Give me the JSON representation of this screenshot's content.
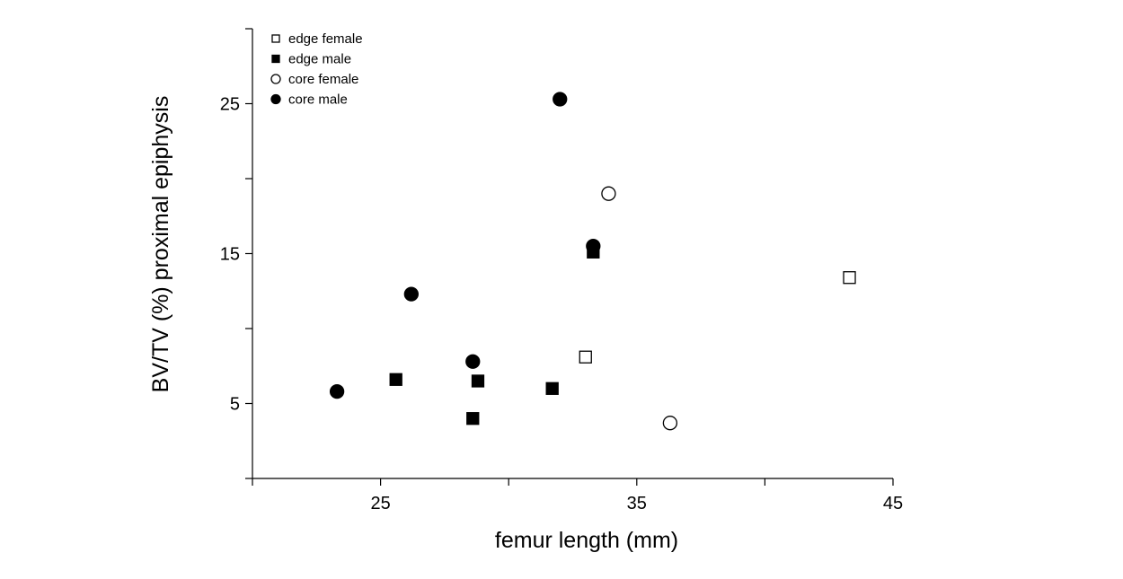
{
  "chart_data": {
    "type": "scatter",
    "title": "",
    "xlabel": "femur length (mm)",
    "ylabel": "BV/TV (%) proximal epiphysis",
    "xlim": [
      20,
      45
    ],
    "ylim": [
      0,
      30
    ],
    "x_ticks_major": [
      25,
      35,
      45
    ],
    "x_ticks_minor": [
      20,
      30,
      40
    ],
    "y_ticks_major": [
      5,
      15,
      25
    ],
    "y_ticks_minor": [
      0,
      10,
      20,
      30
    ],
    "grid": false,
    "legend_position": "top-left",
    "series": [
      {
        "name": "edge female",
        "marker": "open-square",
        "color": "#000000",
        "points": [
          {
            "x": 33.0,
            "y": 8.1
          },
          {
            "x": 43.3,
            "y": 13.4
          }
        ]
      },
      {
        "name": "edge male",
        "marker": "filled-square",
        "color": "#000000",
        "points": [
          {
            "x": 25.6,
            "y": 6.6
          },
          {
            "x": 28.6,
            "y": 4.0
          },
          {
            "x": 28.8,
            "y": 6.5
          },
          {
            "x": 31.7,
            "y": 6.0
          },
          {
            "x": 33.3,
            "y": 15.1
          }
        ]
      },
      {
        "name": "core female",
        "marker": "open-circle",
        "color": "#000000",
        "points": [
          {
            "x": 33.9,
            "y": 19.0
          },
          {
            "x": 36.3,
            "y": 3.7
          }
        ]
      },
      {
        "name": "core male",
        "marker": "filled-circle",
        "color": "#000000",
        "points": [
          {
            "x": 23.3,
            "y": 5.8
          },
          {
            "x": 26.2,
            "y": 12.3
          },
          {
            "x": 28.6,
            "y": 7.8
          },
          {
            "x": 32.0,
            "y": 25.3
          },
          {
            "x": 33.3,
            "y": 15.5
          }
        ]
      }
    ]
  }
}
